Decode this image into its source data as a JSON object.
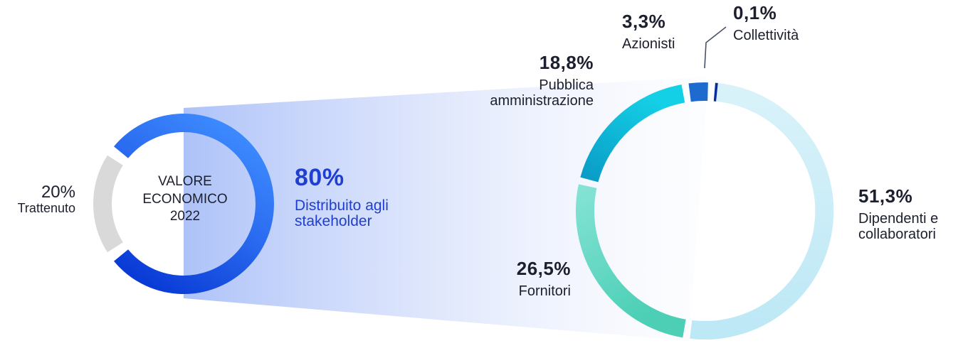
{
  "colors": {
    "deep_blue": "#0a3bd6",
    "light_blue": "#3e8cff",
    "grey": "#d9d9d9",
    "accent_text": "#1e3fd0",
    "cyan": "#14c8e2",
    "teal_light": "#7fe0d0",
    "teal": "#4ccfb5",
    "pale_cyan": "#d4f0f9",
    "azionisti": "#1e6bd0",
    "collettivita": "#0a2b9e"
  },
  "chart_data": [
    {
      "type": "pie",
      "style": "donut",
      "center_label": [
        "VALORE",
        "ECONOMICO",
        "2022"
      ],
      "slices": [
        {
          "label": "Distribuito agli stakeholder",
          "value": 80,
          "value_label": "80%",
          "color": "#3e8cff"
        },
        {
          "label": "Trattenuto",
          "value": 20,
          "value_label": "20%",
          "color": "#d9d9d9"
        }
      ]
    },
    {
      "type": "pie",
      "style": "donut",
      "slices": [
        {
          "label": "Dipendenti e collaboratori",
          "value": 51.3,
          "value_label": "51,3%",
          "color": "#d4f0f9"
        },
        {
          "label": "Fornitori",
          "value": 26.5,
          "value_label": "26,5%",
          "color": "#4ccfb5"
        },
        {
          "label": "Pubblica amministrazione",
          "value": 18.8,
          "value_label": "18,8%",
          "color": "#14c8e2"
        },
        {
          "label": "Azionisti",
          "value": 3.3,
          "value_label": "3,3%",
          "color": "#1e6bd0"
        },
        {
          "label": "Collettività",
          "value": 0.1,
          "value_label": "0,1%",
          "color": "#0a2b9e"
        }
      ]
    }
  ],
  "labels": {
    "center": {
      "line1": "VALORE",
      "line2": "ECONOMICO",
      "line3": "2022"
    },
    "trattenuto": {
      "pct": "20%",
      "name": "Trattenuto"
    },
    "distribuito": {
      "pct": "80%",
      "name1": "Distribuito agli",
      "name2": "stakeholder"
    },
    "dipendenti": {
      "pct": "51,3%",
      "name1": "Dipendenti e",
      "name2": "collaboratori"
    },
    "fornitori": {
      "pct": "26,5%",
      "name": "Fornitori"
    },
    "pa": {
      "pct": "18,8%",
      "name1": "Pubblica",
      "name2": "amministrazione"
    },
    "azionisti": {
      "pct": "3,3%",
      "name": "Azionisti"
    },
    "collettivita": {
      "pct": "0,1%",
      "name": "Collettività"
    }
  }
}
